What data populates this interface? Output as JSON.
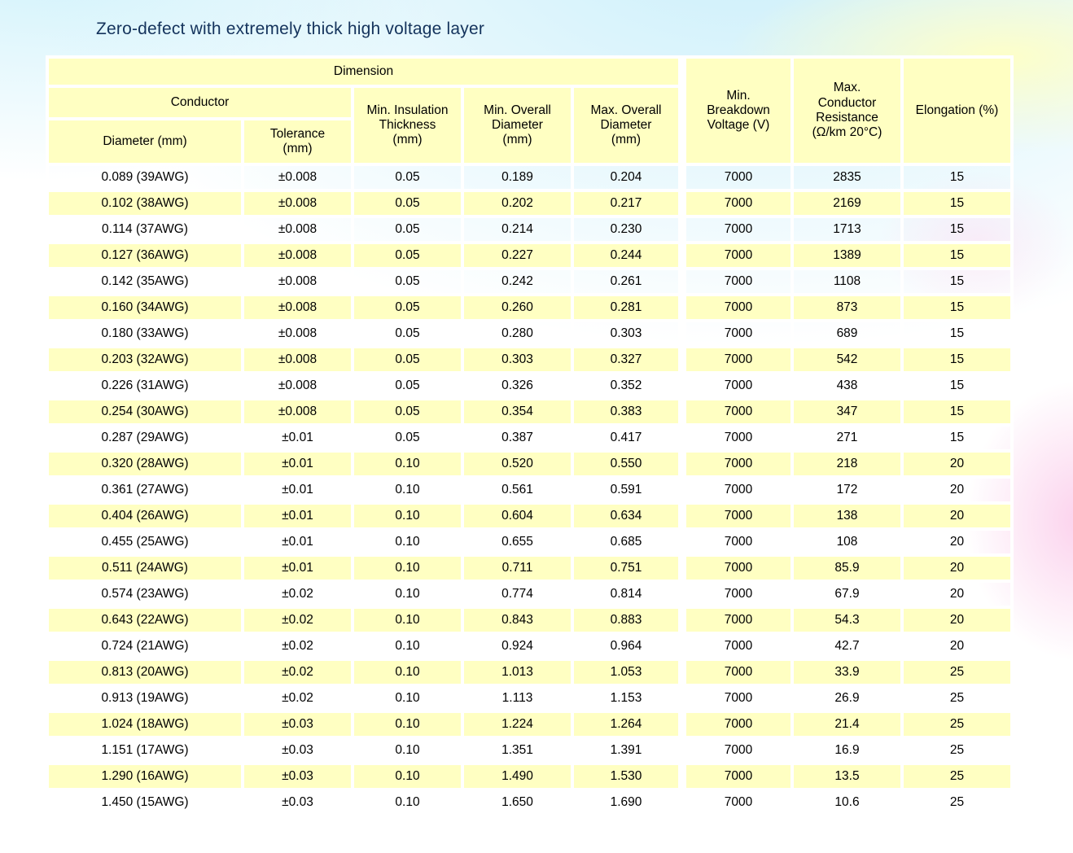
{
  "page": {
    "title": "Zero-defect with extremely thick high voltage layer"
  },
  "colors": {
    "header_bg": "#FFFFC2",
    "row_alt_bg": "#FFFFC2",
    "title_color": "#14335C",
    "cell_text": "#000000",
    "bg_cyan": "#C7EEFA",
    "bg_pink": "#FAC6E8",
    "bg_yellow_tint": "#FFFFC6",
    "border_white": "#FFFFFF"
  },
  "table": {
    "header": {
      "dimension": "Dimension",
      "conductor": "Conductor",
      "diameter": "Diameter (mm)",
      "tolerance": "Tolerance\n(mm)",
      "insulation": "Min. Insulation\nThickness\n(mm)",
      "min_overall": "Min. Overall\nDiameter\n(mm)",
      "max_overall": "Max. Overall\nDiameter\n(mm)",
      "breakdown": "Min.\nBreakdown\nVoltage (V)",
      "resistance": "Max.\nConductor\nResistance\n(Ω/km 20°C)",
      "elongation": "Elongation (%)"
    },
    "rows": [
      [
        "0.089 (39AWG)",
        "±0.008",
        "0.05",
        "0.189",
        "0.204",
        "7000",
        "2835",
        "15"
      ],
      [
        "0.102 (38AWG)",
        "±0.008",
        "0.05",
        "0.202",
        "0.217",
        "7000",
        "2169",
        "15"
      ],
      [
        "0.114 (37AWG)",
        "±0.008",
        "0.05",
        "0.214",
        "0.230",
        "7000",
        "1713",
        "15"
      ],
      [
        "0.127 (36AWG)",
        "±0.008",
        "0.05",
        "0.227",
        "0.244",
        "7000",
        "1389",
        "15"
      ],
      [
        "0.142 (35AWG)",
        "±0.008",
        "0.05",
        "0.242",
        "0.261",
        "7000",
        "1108",
        "15"
      ],
      [
        "0.160 (34AWG)",
        "±0.008",
        "0.05",
        "0.260",
        "0.281",
        "7000",
        "873",
        "15"
      ],
      [
        "0.180 (33AWG)",
        "±0.008",
        "0.05",
        "0.280",
        "0.303",
        "7000",
        "689",
        "15"
      ],
      [
        "0.203 (32AWG)",
        "±0.008",
        "0.05",
        "0.303",
        "0.327",
        "7000",
        "542",
        "15"
      ],
      [
        "0.226 (31AWG)",
        "±0.008",
        "0.05",
        "0.326",
        "0.352",
        "7000",
        "438",
        "15"
      ],
      [
        "0.254 (30AWG)",
        "±0.008",
        "0.05",
        "0.354",
        "0.383",
        "7000",
        "347",
        "15"
      ],
      [
        "0.287 (29AWG)",
        "±0.01",
        "0.05",
        "0.387",
        "0.417",
        "7000",
        "271",
        "15"
      ],
      [
        "0.320 (28AWG)",
        "±0.01",
        "0.10",
        "0.520",
        "0.550",
        "7000",
        "218",
        "20"
      ],
      [
        "0.361 (27AWG)",
        "±0.01",
        "0.10",
        "0.561",
        "0.591",
        "7000",
        "172",
        "20"
      ],
      [
        "0.404 (26AWG)",
        "±0.01",
        "0.10",
        "0.604",
        "0.634",
        "7000",
        "138",
        "20"
      ],
      [
        "0.455 (25AWG)",
        "±0.01",
        "0.10",
        "0.655",
        "0.685",
        "7000",
        "108",
        "20"
      ],
      [
        "0.511 (24AWG)",
        "±0.01",
        "0.10",
        "0.711",
        "0.751",
        "7000",
        "85.9",
        "20"
      ],
      [
        "0.574 (23AWG)",
        "±0.02",
        "0.10",
        "0.774",
        "0.814",
        "7000",
        "67.9",
        "20"
      ],
      [
        "0.643 (22AWG)",
        "±0.02",
        "0.10",
        "0.843",
        "0.883",
        "7000",
        "54.3",
        "20"
      ],
      [
        "0.724 (21AWG)",
        "±0.02",
        "0.10",
        "0.924",
        "0.964",
        "7000",
        "42.7",
        "20"
      ],
      [
        "0.813 (20AWG)",
        "±0.02",
        "0.10",
        "1.013",
        "1.053",
        "7000",
        "33.9",
        "25"
      ],
      [
        "0.913 (19AWG)",
        "±0.02",
        "0.10",
        "1.113",
        "1.153",
        "7000",
        "26.9",
        "25"
      ],
      [
        "1.024 (18AWG)",
        "±0.03",
        "0.10",
        "1.224",
        "1.264",
        "7000",
        "21.4",
        "25"
      ],
      [
        "1.151 (17AWG)",
        "±0.03",
        "0.10",
        "1.351",
        "1.391",
        "7000",
        "16.9",
        "25"
      ],
      [
        "1.290 (16AWG)",
        "±0.03",
        "0.10",
        "1.490",
        "1.530",
        "7000",
        "13.5",
        "25"
      ],
      [
        "1.450 (15AWG)",
        "±0.03",
        "0.10",
        "1.650",
        "1.690",
        "7000",
        "10.6",
        "25"
      ]
    ]
  }
}
